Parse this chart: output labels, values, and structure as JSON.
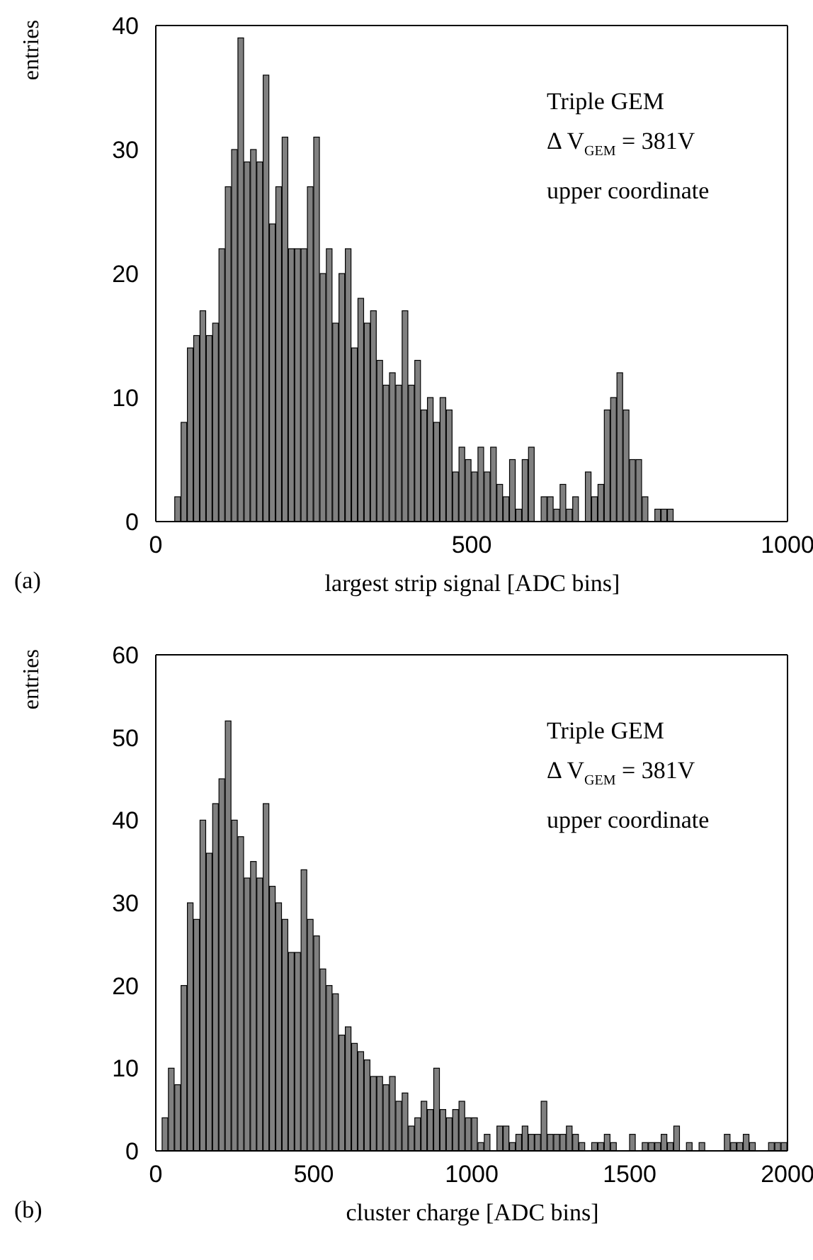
{
  "chart_data": [
    {
      "type": "histogram",
      "xlabel": "largest strip signal [ADC bins]",
      "ylabel": "entries",
      "color": "#808080",
      "bins": [
        0,
        10,
        20,
        30,
        40,
        50,
        60,
        70,
        80,
        90,
        100,
        110,
        120,
        130,
        140,
        150,
        160,
        170,
        180,
        190,
        200,
        210,
        220,
        230,
        240,
        250,
        260,
        270,
        280,
        290,
        300,
        310,
        320,
        330,
        340,
        350,
        360,
        370,
        380,
        390,
        400,
        410,
        420,
        430,
        440,
        450,
        460,
        470,
        480,
        490,
        500,
        510,
        520,
        530,
        540,
        550,
        560,
        570,
        580,
        590,
        600,
        610,
        620,
        630,
        640,
        650,
        660,
        670,
        680,
        690,
        700,
        710,
        720,
        730,
        740,
        750,
        760,
        770,
        780,
        790,
        800,
        810,
        820,
        830,
        840,
        850,
        860,
        870,
        880,
        890,
        900
      ],
      "values": [
        0,
        0,
        0,
        2,
        8,
        14,
        15,
        17,
        15,
        16,
        22,
        27,
        30,
        39,
        29,
        30,
        29,
        36,
        24,
        27,
        31,
        22,
        22,
        22,
        27,
        31,
        20,
        22,
        16,
        20,
        22,
        14,
        18,
        16,
        17,
        13,
        11,
        12,
        11,
        17,
        11,
        13,
        9,
        10,
        8,
        10,
        9,
        4,
        6,
        5,
        4,
        6,
        4,
        6,
        3,
        2,
        5,
        1,
        5,
        6,
        0,
        2,
        2,
        1,
        3,
        1,
        2,
        0,
        4,
        2,
        3,
        9,
        10,
        12,
        9,
        5,
        5,
        2,
        0,
        1,
        1,
        1,
        0,
        0,
        0,
        0,
        0,
        0,
        0,
        0
      ],
      "xlim": [
        0,
        1000
      ],
      "xticks": [
        0,
        500,
        1000
      ],
      "ylim": [
        0,
        40
      ],
      "yticks": [
        0,
        10,
        20,
        30,
        40
      ],
      "annotations": [
        "Triple GEM",
        "Δ V$_{GEM}$ = 381V",
        "upper coordinate",
        "(a)"
      ]
    },
    {
      "type": "histogram",
      "xlabel": "cluster charge [ADC bins]",
      "ylabel": "entries",
      "color": "#808080",
      "bins": [
        0,
        20,
        40,
        60,
        80,
        100,
        120,
        140,
        160,
        180,
        200,
        220,
        240,
        260,
        280,
        300,
        320,
        340,
        360,
        380,
        400,
        420,
        440,
        460,
        480,
        500,
        520,
        540,
        560,
        580,
        600,
        620,
        640,
        660,
        680,
        700,
        720,
        740,
        760,
        780,
        800,
        820,
        840,
        860,
        880,
        900,
        920,
        940,
        960,
        980,
        1000,
        1020,
        1040,
        1060,
        1080,
        1100,
        1120,
        1140,
        1160,
        1180,
        1200,
        1220,
        1240,
        1260,
        1280,
        1300,
        1320,
        1340,
        1360,
        1380,
        1400,
        1420,
        1440,
        1460,
        1480,
        1500,
        1520,
        1540,
        1560,
        1580,
        1600,
        1620,
        1640,
        1660,
        1680,
        1700,
        1720,
        1740,
        1760,
        1780,
        1800,
        1820,
        1840,
        1860,
        1880,
        1900,
        1920,
        1940,
        1960,
        1980,
        2000
      ],
      "values": [
        0,
        4,
        10,
        8,
        20,
        30,
        28,
        40,
        36,
        42,
        45,
        52,
        40,
        38,
        33,
        35,
        33,
        42,
        32,
        30,
        28,
        24,
        24,
        34,
        28,
        26,
        22,
        20,
        19,
        14,
        15,
        13,
        12,
        11,
        9,
        9,
        8,
        9,
        6,
        7,
        3,
        4,
        6,
        5,
        10,
        5,
        4,
        5,
        6,
        4,
        4,
        1,
        2,
        0,
        3,
        3,
        1,
        2,
        3,
        2,
        2,
        6,
        2,
        2,
        2,
        3,
        2,
        1,
        0,
        1,
        1,
        2,
        1,
        0,
        0,
        2,
        0,
        1,
        1,
        1,
        2,
        1,
        3,
        0,
        1,
        0,
        1,
        0,
        0,
        0,
        2,
        1,
        1,
        2,
        1,
        0,
        0,
        1,
        1,
        1
      ],
      "xlim": [
        0,
        2000
      ],
      "xticks": [
        0,
        500,
        1000,
        1500,
        2000
      ],
      "ylim": [
        0,
        60
      ],
      "yticks": [
        0,
        10,
        20,
        30,
        40,
        50,
        60
      ],
      "annotations": [
        "Triple GEM",
        "Δ V$_{GEM}$ = 381V",
        "upper coordinate",
        "(b)"
      ]
    }
  ]
}
